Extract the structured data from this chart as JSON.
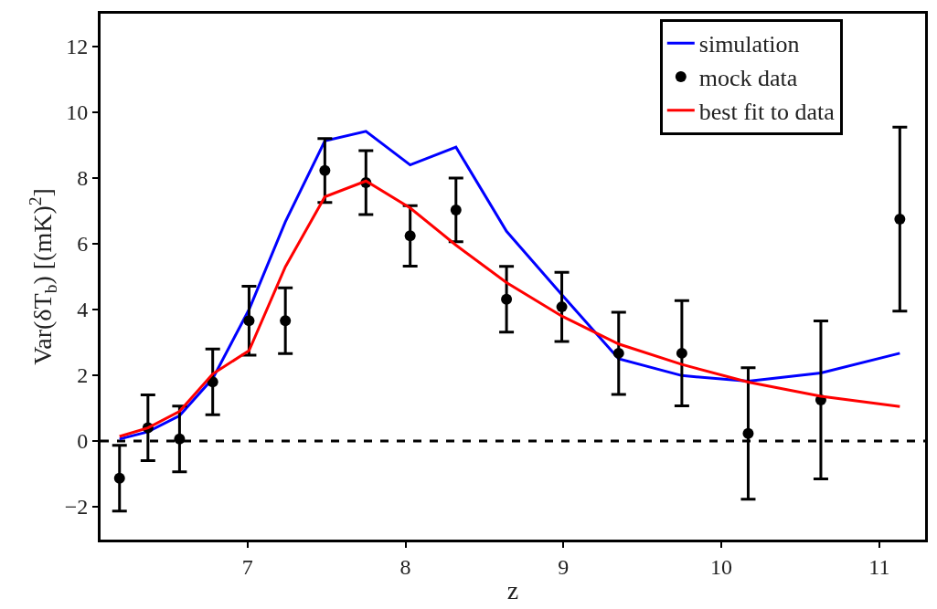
{
  "chart_data": {
    "type": "line",
    "xlabel": "z",
    "ylabel": "Var(δT$_{b}$) [(mK)$^{2}$]",
    "xlim": [
      6.07,
      11.29
    ],
    "ylim": [
      -3,
      13
    ],
    "xticks": [
      7,
      8,
      9,
      10,
      11
    ],
    "yticks": [
      -2,
      0,
      2,
      4,
      6,
      8,
      10,
      12
    ],
    "grid": false,
    "legend": "top right",
    "series": [
      {
        "name": "simulation",
        "color": "#0000ff",
        "marker": "none",
        "line_style": "solid",
        "x": [
          6.19,
          6.37,
          6.57,
          6.78,
          7.01,
          7.24,
          7.49,
          7.75,
          8.03,
          8.32,
          8.64,
          8.99,
          9.35,
          9.75,
          10.17,
          10.63,
          11.13
        ],
        "values": [
          0.06,
          0.28,
          0.77,
          1.9,
          4.0,
          6.67,
          9.13,
          9.42,
          8.4,
          8.94,
          6.38,
          4.45,
          2.5,
          1.99,
          1.82,
          2.07,
          2.67
        ]
      },
      {
        "name": "mock data",
        "type": "scatter",
        "color": "#000000",
        "marker": "circle",
        "x": [
          6.19,
          6.37,
          6.57,
          6.78,
          7.01,
          7.24,
          7.49,
          7.75,
          8.03,
          8.32,
          8.64,
          8.99,
          9.35,
          9.75,
          10.17,
          10.63,
          11.13
        ],
        "values": [
          -1.13,
          0.4,
          0.06,
          1.8,
          3.66,
          3.66,
          8.23,
          7.86,
          6.24,
          7.03,
          4.31,
          4.08,
          2.67,
          2.67,
          0.23,
          1.25,
          6.75
        ],
        "errors": [
          1.0,
          1.0,
          1.0,
          1.0,
          1.05,
          1.0,
          0.97,
          0.97,
          0.92,
          0.97,
          1.0,
          1.05,
          1.25,
          1.6,
          2.0,
          2.4,
          2.8
        ]
      },
      {
        "name": "best fit to data",
        "color": "#ff0000",
        "marker": "none",
        "line_style": "solid",
        "x": [
          6.19,
          6.37,
          6.57,
          6.78,
          7.01,
          7.24,
          7.49,
          7.75,
          8.03,
          8.32,
          8.64,
          8.99,
          9.35,
          9.75,
          10.17,
          10.63,
          11.13
        ],
        "values": [
          0.14,
          0.4,
          0.9,
          2.04,
          2.75,
          5.3,
          7.43,
          7.91,
          7.09,
          5.96,
          4.82,
          3.8,
          2.95,
          2.33,
          1.79,
          1.36,
          1.05
        ]
      }
    ],
    "ref_lines": [
      {
        "axis": "y",
        "value": 0,
        "color": "#000000",
        "line_style": "dashed"
      }
    ]
  }
}
